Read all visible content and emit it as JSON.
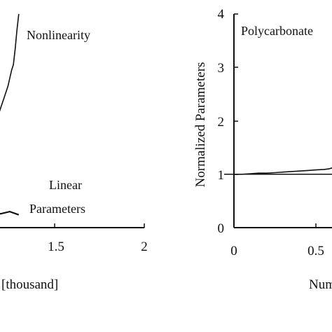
{
  "chart_data": [
    {
      "type": "line",
      "title": "",
      "xlabel": "[thousand]",
      "ylabel": "",
      "xlim": [
        1.0,
        2.0
      ],
      "ylim": [
        0,
        4
      ],
      "x_ticks": [
        1.5,
        2
      ],
      "x_tick_labels": [
        "1.5",
        "2"
      ],
      "grid": false,
      "legend": "none",
      "annotations": [
        "Nonlinearity",
        "Linear",
        "Parameters"
      ],
      "series": [
        {
          "x": [
            1.0,
            1.04,
            1.08,
            1.12,
            1.15,
            1.18,
            1.2,
            1.22,
            1.24,
            1.25,
            1.26,
            1.27,
            1.28,
            1.29,
            1.3
          ],
          "y": [
            0.95,
            1.1,
            1.3,
            1.55,
            1.8,
            2.05,
            2.25,
            2.45,
            2.65,
            2.8,
            2.95,
            3.05,
            3.35,
            3.7,
            4.0
          ]
        },
        {
          "x": [
            1.0,
            1.05,
            1.1,
            1.15,
            1.2,
            1.25,
            1.3
          ],
          "y": [
            0.25,
            0.26,
            0.25,
            0.27,
            0.26,
            0.3,
            0.24
          ]
        }
      ]
    },
    {
      "type": "line",
      "title": "",
      "xlabel": "Num",
      "ylabel": "Normalized Parameters",
      "xlim": [
        0,
        0.62
      ],
      "ylim": [
        0,
        4
      ],
      "x_ticks": [
        0,
        0.5
      ],
      "x_tick_labels": [
        "0",
        "0.5"
      ],
      "y_ticks": [
        0,
        1,
        2,
        3,
        4
      ],
      "y_tick_labels": [
        "0",
        "1",
        "2",
        "3",
        "4"
      ],
      "grid": false,
      "legend": "none",
      "annotations": [
        "Polycarbonate"
      ],
      "reference_line_y": 1,
      "series": [
        {
          "x": [
            0.0,
            0.05,
            0.1,
            0.15,
            0.2,
            0.25,
            0.3,
            0.35,
            0.4,
            0.45,
            0.5,
            0.55,
            0.58,
            0.6,
            0.62
          ],
          "y": [
            1.0,
            1.0,
            1.01,
            1.02,
            1.02,
            1.03,
            1.04,
            1.05,
            1.06,
            1.07,
            1.08,
            1.09,
            1.1,
            1.12,
            1.16
          ]
        }
      ]
    }
  ]
}
